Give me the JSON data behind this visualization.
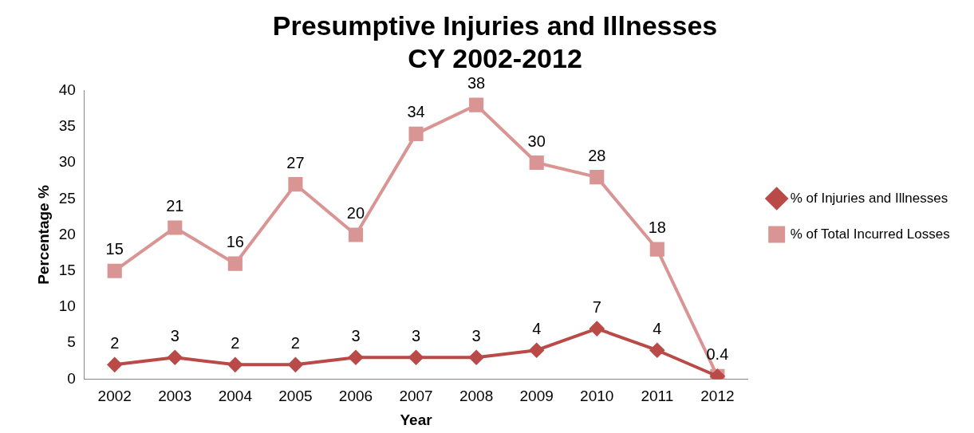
{
  "chart_data": {
    "type": "line",
    "title": [
      "Presumptive Injuries and Illnesses",
      "CY 2002-2012"
    ],
    "xlabel": "Year",
    "ylabel": "Percentage %",
    "categories": [
      "2002",
      "2003",
      "2004",
      "2005",
      "2006",
      "2007",
      "2008",
      "2009",
      "2010",
      "2011",
      "2012"
    ],
    "series": [
      {
        "name": "% of Injuries and Illnesses",
        "color": "#b94a48",
        "marker": "diamond",
        "values": [
          2,
          3,
          2,
          2,
          3,
          3,
          3,
          4,
          7,
          4,
          0.4
        ],
        "value_labels": [
          "2",
          "3",
          "2",
          "2",
          "3",
          "3",
          "3",
          "4",
          "7",
          "4",
          null
        ]
      },
      {
        "name": "% of Total Incurred Losses",
        "color": "#d99594",
        "marker": "square",
        "values": [
          15,
          21,
          16,
          27,
          20,
          34,
          38,
          30,
          28,
          18,
          0.4
        ],
        "value_labels": [
          "15",
          "21",
          "16",
          "27",
          "20",
          "34",
          "38",
          "30",
          "28",
          "18",
          "0.4"
        ]
      }
    ],
    "ylim": [
      0,
      40
    ],
    "yticks": [
      0,
      5,
      10,
      15,
      20,
      25,
      30,
      35,
      40
    ],
    "grid": false,
    "legend": "right",
    "line_style": "solid"
  }
}
